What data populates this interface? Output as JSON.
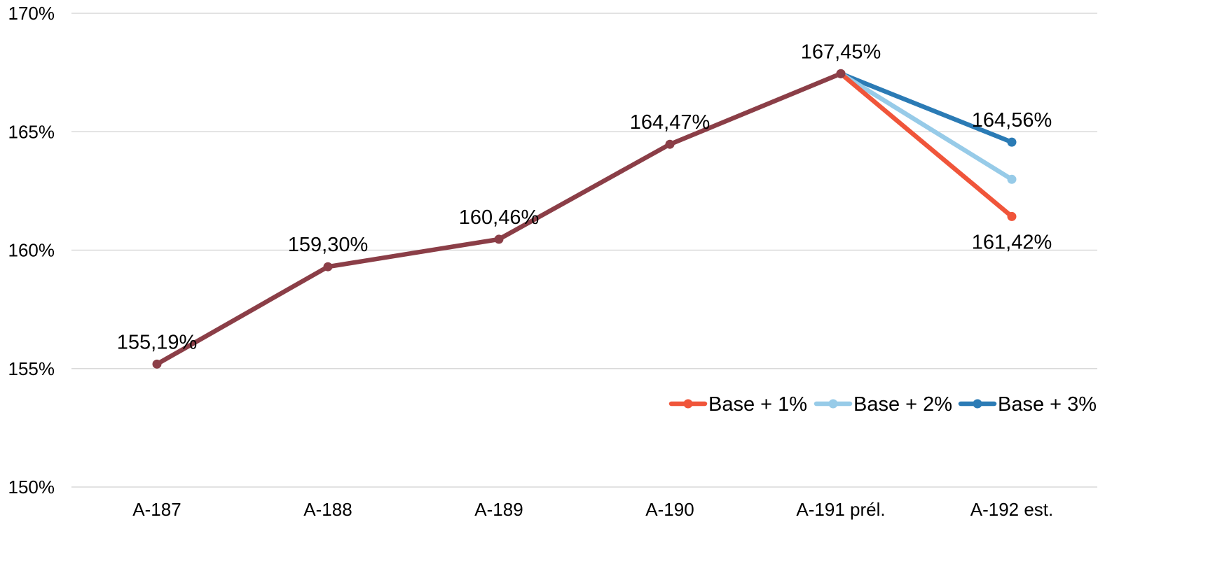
{
  "chart_data": {
    "type": "line",
    "categories": [
      "A-187",
      "A-188",
      "A-189",
      "A-190",
      "A-191 prél.",
      "A-192 est."
    ],
    "ylim": [
      150,
      170
    ],
    "yticks": [
      150,
      155,
      160,
      165,
      170
    ],
    "ytick_labels": [
      "150%",
      "155%",
      "160%",
      "165%",
      "170%"
    ],
    "grid": true,
    "legend_position": "right",
    "series": [
      {
        "values": [
          155.19,
          159.3,
          160.46,
          164.47,
          167.45,
          null
        ],
        "color": "#8b3e47"
      },
      {
        "name": "Base + 1%",
        "values": [
          null,
          null,
          null,
          null,
          167.45,
          161.42
        ],
        "color": "#f0553a"
      },
      {
        "name": "Base + 2%",
        "values": [
          null,
          null,
          null,
          null,
          167.45,
          162.99
        ],
        "color": "#97cbe8"
      },
      {
        "name": "Base + 3%",
        "values": [
          null,
          null,
          null,
          null,
          167.45,
          164.56
        ],
        "color": "#2b7bb5"
      }
    ],
    "data_labels": [
      {
        "category": "A-187",
        "value": 155.19,
        "text": "155,19%"
      },
      {
        "category": "A-188",
        "value": 159.3,
        "text": "159,30%"
      },
      {
        "category": "A-189",
        "value": 160.46,
        "text": "160,46%"
      },
      {
        "category": "A-190",
        "value": 164.47,
        "text": "164,47%"
      },
      {
        "category": "A-191 prél.",
        "value": 167.45,
        "text": "167,45%"
      },
      {
        "category": "A-192 est.",
        "value": 164.56,
        "text": "164,56%"
      },
      {
        "category": "A-192 est.",
        "value": 161.42,
        "text": "161,42%"
      }
    ]
  }
}
